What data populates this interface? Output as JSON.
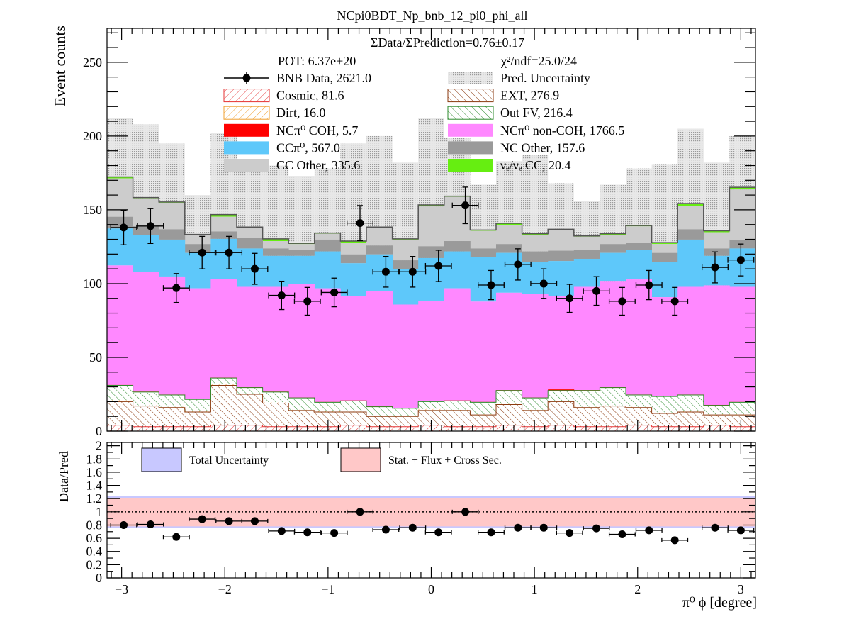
{
  "chart_data": [
    {
      "type": "bar",
      "stacked": true,
      "title": "NCpi0BDT_Np_bnb_12_pi0_phi_all",
      "ylabel": "Event counts",
      "xlim": [
        -3.14159,
        3.14159
      ],
      "ylim": [
        0,
        273
      ],
      "yticks": [
        0,
        50,
        100,
        150,
        200,
        250
      ],
      "xticks": [
        -3,
        -2,
        -1,
        0,
        1,
        2,
        3
      ],
      "xtick_labels": [
        "−3",
        "−2",
        "−1",
        "0",
        "1",
        "2",
        "3"
      ],
      "grid": false,
      "legend_position": "top",
      "annotations": {
        "ratio_text": "ΣData/ΣPrediction=0.76±0.17",
        "pot": "POT: 6.37e+20",
        "chi2": "χ²/ndf=25.0/24"
      },
      "bin_centers": [
        -2.98,
        -2.72,
        -2.47,
        -2.22,
        -1.96,
        -1.71,
        -1.45,
        -1.2,
        -0.94,
        -0.69,
        -0.44,
        -0.18,
        0.07,
        0.33,
        0.58,
        0.84,
        1.09,
        1.34,
        1.6,
        1.85,
        2.11,
        2.36,
        2.62,
        2.87,
        3.12
      ],
      "legend": [
        {
          "label": "BNB Data, 2621.0",
          "style": "data",
          "color": "#000000"
        },
        {
          "label": "Pred. Uncertainty",
          "style": "uncertainty",
          "color": "#c4c4c4"
        },
        {
          "label": "Cosmic, 81.6",
          "style": "hatch",
          "color": "#e53333"
        },
        {
          "label": "EXT, 276.9",
          "style": "hatch",
          "color": "#8b3a0f"
        },
        {
          "label": "Dirt, 16.0",
          "style": "hatch",
          "color": "#f0a030"
        },
        {
          "label": "Out FV, 216.4",
          "style": "hatch",
          "color": "#2e8b2e"
        },
        {
          "label": "NCπ⁰ COH,  5.7",
          "style": "fill",
          "color": "#ff0000"
        },
        {
          "label": "NCπ⁰ non-COH,  1766.5",
          "style": "fill",
          "color": "#ff88ff"
        },
        {
          "label": "CCπ⁰, 567.0",
          "style": "fill",
          "color": "#5ec8fa"
        },
        {
          "label": "NC Other, 157.6",
          "style": "fill",
          "color": "#9a9a9a"
        },
        {
          "label": "CC Other, 335.6",
          "style": "fill",
          "color": "#cccccc"
        },
        {
          "label": "νₑ/ν̄ₑ CC, 20.4",
          "style": "fill",
          "color": "#66ee11"
        }
      ],
      "series": [
        {
          "name": "Cosmic, 81.6",
          "color": "#e53333",
          "hatch": true,
          "values": [
            4,
            3,
            3,
            3,
            4,
            4,
            3,
            3,
            3,
            4,
            3,
            3,
            4,
            3,
            3,
            4,
            3,
            4,
            3,
            3,
            4,
            3,
            3,
            4,
            3
          ]
        },
        {
          "name": "EXT, 276.9",
          "color": "#8b3a0f",
          "hatch": true,
          "values": [
            16,
            14,
            13,
            10,
            27,
            21,
            16,
            11,
            10,
            9,
            7,
            7,
            10,
            11,
            8,
            14,
            11,
            16,
            13,
            14,
            12,
            9,
            10,
            7,
            8
          ]
        },
        {
          "name": "Dirt, 16.0",
          "color": "#f0a030",
          "hatch": true,
          "values": [
            1,
            0.5,
            0.5,
            0.5,
            1,
            0.5,
            0.5,
            0.5,
            0.5,
            0.5,
            0.5,
            0.5,
            1,
            0.5,
            0.5,
            0.5,
            0.5,
            0.5,
            0.5,
            0.5,
            0.5,
            0.5,
            0.5,
            0.5,
            0.5
          ]
        },
        {
          "name": "Out FV, 216.4",
          "color": "#2e8b2e",
          "hatch": true,
          "values": [
            10,
            9,
            8,
            8,
            4,
            4,
            7,
            8,
            6,
            7,
            6,
            5,
            5,
            6,
            8,
            9,
            8,
            7,
            11,
            12,
            8,
            11,
            11,
            6,
            8
          ]
        },
        {
          "name": "NCπ⁰ COH,  5.7",
          "color": "#ff0000",
          "hatch": false,
          "values": [
            0.3,
            0.3,
            0.3,
            0.3,
            0.3,
            0.3,
            0.3,
            0.3,
            0.3,
            0.3,
            0.3,
            0.3,
            0.3,
            0.3,
            0.3,
            0.3,
            0.3,
            0.8,
            0.3,
            0.3,
            0.3,
            0.3,
            0.3,
            0.3,
            0.3
          ]
        },
        {
          "name": "NCπ⁰ non-COH,  1766.5",
          "color": "#ff88ff",
          "hatch": false,
          "values": [
            81,
            81,
            80,
            75,
            67,
            68,
            71,
            77,
            77,
            71,
            78,
            70,
            68,
            76,
            68,
            66,
            70,
            63,
            70,
            72,
            78,
            67,
            73,
            81,
            78
          ]
        },
        {
          "name": "CCπ⁰, 567.0",
          "color": "#5ec8fa",
          "hatch": false,
          "values": [
            25,
            25,
            25,
            24,
            27,
            26,
            21,
            19,
            25,
            22,
            25,
            24,
            29,
            25,
            30,
            27,
            22,
            24,
            19,
            19,
            20,
            24,
            32,
            20,
            26
          ]
        },
        {
          "name": "NC Other, 157.6",
          "color": "#9a9a9a",
          "hatch": false,
          "values": [
            8,
            6,
            7,
            6,
            5,
            7,
            5,
            4,
            8,
            6,
            6,
            6,
            8,
            7,
            6,
            6,
            7,
            7,
            6,
            6,
            5,
            6,
            7,
            5,
            6
          ]
        },
        {
          "name": "CC Other, 335.6",
          "color": "#cccccc",
          "hatch": false,
          "values": [
            26,
            19,
            18,
            6,
            10,
            7,
            5,
            4,
            4,
            8,
            12,
            14,
            27,
            30,
            12,
            13,
            11,
            14,
            9,
            6,
            11,
            6,
            16,
            11,
            34
          ]
        },
        {
          "name": "νₑ/ν̄ₑ CC, 20.4",
          "color": "#66ee11",
          "hatch": false,
          "values": [
            1,
            0.5,
            0.5,
            0.5,
            1.5,
            0.5,
            1.5,
            0.5,
            0.5,
            1,
            0.5,
            0.5,
            1,
            0.5,
            0.5,
            1,
            1,
            0.5,
            0.5,
            1,
            0.5,
            1,
            1.5,
            1,
            1.5
          ]
        }
      ],
      "uncertainty_top": [
        212,
        208,
        195,
        160,
        202,
        178,
        180,
        173,
        178,
        195,
        200,
        182,
        212,
        199,
        167,
        183,
        187,
        168,
        156,
        167,
        178,
        181,
        205,
        182,
        200
      ],
      "data": {
        "name": "BNB Data, 2621.0",
        "y": [
          138,
          139,
          97,
          121,
          121,
          110,
          92,
          88,
          94,
          141,
          108,
          108,
          112,
          153,
          99,
          113,
          100,
          90,
          95,
          88,
          99,
          88,
          111,
          116
        ],
        "x": [
          -2.98,
          -2.72,
          -2.47,
          -2.22,
          -1.96,
          -1.71,
          -1.45,
          -1.2,
          -0.94,
          -0.69,
          -0.44,
          -0.18,
          0.07,
          0.33,
          0.58,
          0.84,
          1.09,
          1.34,
          1.6,
          1.85,
          2.11,
          2.36,
          2.75,
          3.0
        ],
        "yerr": [
          11.7,
          11.8,
          9.8,
          11.0,
          11.0,
          10.5,
          9.6,
          9.4,
          9.7,
          11.9,
          10.4,
          10.4,
          10.6,
          12.4,
          9.9,
          10.6,
          10.0,
          9.5,
          9.7,
          9.4,
          9.9,
          9.4,
          10.5,
          10.8
        ],
        "xerr": 0.1257
      }
    },
    {
      "type": "scatter",
      "ylabel": "Data/Pred",
      "xlabel": "π⁰ ϕ [degree]",
      "xlim": [
        -3.14159,
        3.14159
      ],
      "ylim": [
        0,
        2.05
      ],
      "yticks": [
        0,
        0.2,
        0.4,
        0.6,
        0.8,
        1,
        1.2,
        1.4,
        1.6,
        1.8,
        2
      ],
      "ytick_labels": [
        "0",
        "0.2",
        "0.4",
        "0.6",
        "0.8",
        "1",
        "1.2",
        "1.4",
        "1.6",
        "1.8",
        "2"
      ],
      "xticks": [
        -3,
        -2,
        -1,
        0,
        1,
        2,
        3
      ],
      "xtick_labels": [
        "−3",
        "−2",
        "−1",
        "0",
        "1",
        "2",
        "3"
      ],
      "reference_line": 1,
      "legend": [
        {
          "label": "Total Uncertainty",
          "color": "#c8c8ff"
        },
        {
          "label": "Stat. + Flux + Cross Sec.",
          "color": "#ffc8c8"
        }
      ],
      "bands": {
        "total": {
          "low": 0.76,
          "high": 1.24,
          "color": "#c8c8ff"
        },
        "partial": {
          "low": 0.78,
          "high": 1.21,
          "color": "#ffc8c8"
        }
      },
      "ratio": {
        "x": [
          -2.98,
          -2.72,
          -2.47,
          -2.22,
          -1.96,
          -1.71,
          -1.45,
          -1.2,
          -0.94,
          -0.69,
          -0.44,
          -0.18,
          0.07,
          0.33,
          0.58,
          0.84,
          1.09,
          1.34,
          1.6,
          1.85,
          2.11,
          2.36,
          2.75,
          3.0
        ],
        "y": [
          0.8,
          0.81,
          0.62,
          0.89,
          0.86,
          0.86,
          0.71,
          0.69,
          0.68,
          1.0,
          0.73,
          0.76,
          0.69,
          1.0,
          0.69,
          0.76,
          0.76,
          0.68,
          0.75,
          0.66,
          0.72,
          0.57,
          0.76,
          0.72
        ],
        "yerr": [
          0.05,
          0.05,
          0.04,
          0.05,
          0.05,
          0.05,
          0.04,
          0.04,
          0.04,
          0.05,
          0.04,
          0.04,
          0.04,
          0.05,
          0.04,
          0.04,
          0.04,
          0.04,
          0.04,
          0.04,
          0.04,
          0.03,
          0.04,
          0.04
        ],
        "xerr": 0.1257
      }
    }
  ]
}
